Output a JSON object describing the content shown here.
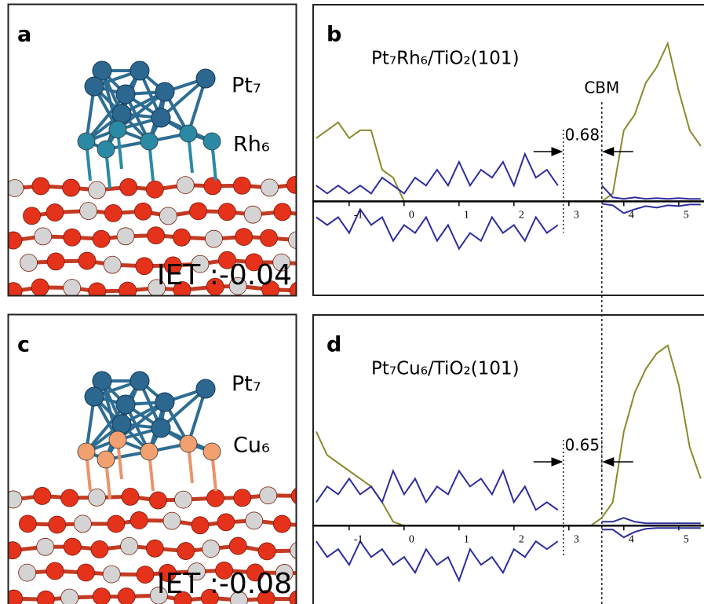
{
  "figure": {
    "panels": [
      {
        "label": "a",
        "atoms": [
          "Pt₇",
          "Rh₆"
        ],
        "iet": "IET :-0.04"
      },
      {
        "label": "c",
        "atoms": [
          "Pt₇",
          "Cu₆"
        ],
        "iet": "IET :-0.08"
      }
    ]
  },
  "chart_data": [
    {
      "type": "line",
      "label": "b",
      "title": "Pt₇Rh₆/TiO₂(101)",
      "edge_label": "CBM",
      "gap_label": "0.68",
      "band_edges": [
        2.9,
        3.6
      ],
      "x": [
        -1.6,
        -1.4,
        -1.2,
        -1.0,
        -0.8,
        -0.6,
        -0.4,
        -0.2,
        0.0,
        0.2,
        0.4,
        0.6,
        0.8,
        1.0,
        1.2,
        1.4,
        1.6,
        1.8,
        2.0,
        2.2,
        2.4,
        2.6,
        2.8,
        3.0,
        3.2,
        3.4,
        3.6,
        3.8,
        4.0,
        4.2,
        4.4,
        4.6,
        4.8,
        5.0,
        5.2,
        5.4
      ],
      "series": [
        {
          "color": "#8b8a2c",
          "values": [
            8,
            9,
            10,
            8,
            9,
            9,
            4,
            3,
            0,
            0,
            0,
            0,
            0,
            0,
            0,
            0,
            0,
            0,
            0,
            0,
            0,
            0,
            0,
            0,
            0,
            0,
            0,
            1,
            9,
            11,
            15,
            17,
            20,
            14,
            9,
            7
          ]
        },
        {
          "color": "#2d2d9e",
          "values": [
            2,
            1,
            2,
            1,
            2,
            1,
            3,
            2,
            1,
            3,
            2,
            4,
            2,
            5,
            2,
            4,
            3,
            5,
            2,
            6,
            3,
            4,
            2,
            null,
            null,
            null,
            2,
            0.5,
            0.3,
            0.5,
            0.3,
            0.4,
            0.3,
            0.4,
            0.3,
            0.3
          ]
        },
        {
          "color": "#2d2d9e",
          "values": [
            -2,
            -3,
            -2,
            -4,
            -1,
            -3,
            -2,
            -5,
            -3,
            -4,
            -2,
            -5,
            -3,
            -6,
            -4,
            -5,
            -2,
            -4,
            -3,
            -5,
            -2,
            -4,
            -3,
            null,
            null,
            null,
            -0.3,
            -0.5,
            -1.5,
            -1,
            -0.6,
            -0.8,
            -0.5,
            -0.6,
            -0.4,
            -0.4
          ]
        }
      ],
      "xlim": [
        -1.67,
        5.46
      ],
      "ylim": [
        -12,
        25
      ],
      "xticks": [
        -1,
        0,
        1,
        2,
        3,
        4,
        5
      ]
    },
    {
      "type": "line",
      "label": "d",
      "title": "Pt₇Cu₆/TiO₂(101)",
      "gap_label": "0.65",
      "band_edges": [
        2.9,
        3.6
      ],
      "x": [
        -1.6,
        -1.4,
        -1.2,
        -1.0,
        -0.8,
        -0.6,
        -0.4,
        -0.2,
        0.0,
        0.2,
        0.4,
        0.6,
        0.8,
        1.0,
        1.2,
        1.4,
        1.6,
        1.8,
        2.0,
        2.2,
        2.4,
        2.6,
        2.8,
        3.0,
        3.2,
        3.4,
        3.6,
        3.8,
        4.0,
        4.2,
        4.4,
        4.6,
        4.8,
        5.0,
        5.2,
        5.4
      ],
      "series": [
        {
          "color": "#8b8a2c",
          "values": [
            12,
            9,
            8,
            7,
            6,
            5,
            3,
            0.5,
            0,
            0,
            0,
            0,
            0,
            0,
            0,
            0,
            0,
            0,
            0,
            0,
            0,
            0,
            0,
            0,
            0,
            0,
            1,
            3,
            12,
            17,
            20,
            22,
            23,
            18,
            10,
            6
          ]
        },
        {
          "color": "#2d2d9e",
          "values": [
            3,
            5,
            4,
            6,
            4,
            5,
            3,
            7,
            4,
            6,
            3,
            5,
            4,
            7,
            5,
            6,
            4,
            7,
            3,
            5,
            2,
            3,
            2,
            null,
            null,
            null,
            0.5,
            0.5,
            1,
            0.5,
            0.3,
            0.3,
            0.3,
            0.3,
            0.3,
            0.3
          ]
        },
        {
          "color": "#2d2d9e",
          "values": [
            -2,
            -4,
            -3,
            -5,
            -2,
            -4,
            -3,
            -5,
            -4,
            -6,
            -3,
            -5,
            -4,
            -7,
            -3,
            -5,
            -4,
            -6,
            -3,
            -4,
            -2,
            -3,
            -2,
            null,
            null,
            null,
            -0.5,
            -0.5,
            -1.5,
            -0.8,
            -0.4,
            -0.3,
            -0.3,
            -0.3,
            -0.3,
            -0.3
          ]
        }
      ],
      "xlim": [
        -1.67,
        5.46
      ],
      "ylim": [
        -10,
        27
      ],
      "xticks": [
        -1,
        0,
        1,
        2,
        3,
        4,
        5
      ]
    }
  ]
}
